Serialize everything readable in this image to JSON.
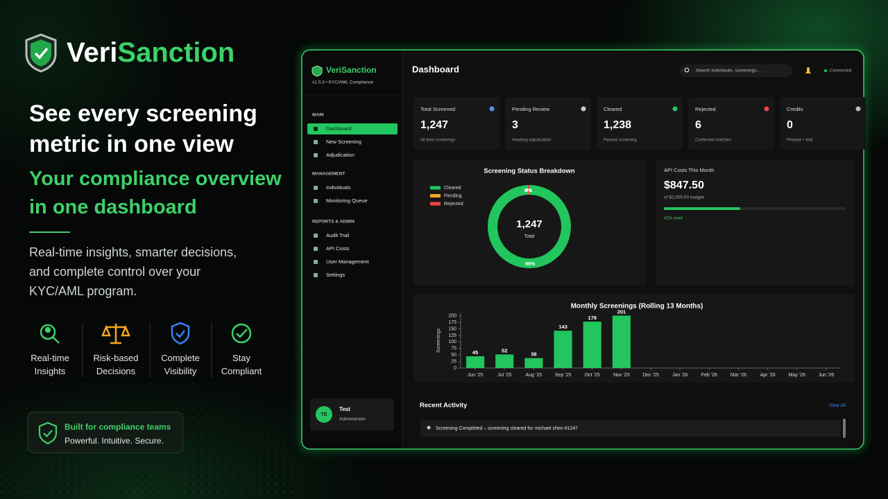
{
  "brand": {
    "first": "Veri",
    "second": "Sanction"
  },
  "headline": "See every screening metric in one view",
  "subheadline": "Your compliance overview in one dashboard",
  "description": "Real-time insights, smarter decisions, and complete control over your KYC/AML program.",
  "features": [
    "Real-time Insights",
    "Risk-based Decisions",
    "Complete Visibility",
    "Stay Compliant"
  ],
  "badge": {
    "title": "Built for compliance teams",
    "text": "Powerful. Intuitive. Secure."
  },
  "app": {
    "brand": "VeriSanction",
    "version": "v1.0.3 • KYC/AML Compliance",
    "nav": [
      {
        "section": "MAIN",
        "items": [
          "Dashboard",
          "New Screening",
          "Adjudication"
        ]
      },
      {
        "section": "MANAGEMENT",
        "items": [
          "Individuals",
          "Monitoring Queue"
        ]
      },
      {
        "section": "REPORTS & ADMIN",
        "items": [
          "Audit Trail",
          "API Costs",
          "User Management",
          "Settings"
        ]
      }
    ],
    "user": {
      "initials": "TE",
      "name": "Test",
      "role": "Administrator"
    },
    "page_title": "Dashboard",
    "search_placeholder": "Search individuals, screenings...",
    "status": "Connected",
    "stats": [
      {
        "label": "Total Screened",
        "value": "1,247",
        "note": "All time screenings"
      },
      {
        "label": "Pending Review",
        "value": "3",
        "note": "Awaiting adjudication"
      },
      {
        "label": "Cleared",
        "value": "1,238",
        "note": "Passed screening"
      },
      {
        "label": "Rejected",
        "value": "6",
        "note": "Confirmed matches"
      },
      {
        "label": "Credits",
        "value": "0",
        "note": "Prepaid + trial"
      }
    ],
    "api_costs": {
      "title": "API Costs This Month",
      "amount": "$847.50",
      "budget": "of $2,000.00 budget",
      "used_pct": 42,
      "used_label": "42% used"
    },
    "recent": {
      "title": "Recent Activity",
      "link": "View All",
      "items": [
        "Screening Completed – screening cleared for michael chen #1247"
      ]
    }
  },
  "chart_data": [
    {
      "type": "pie",
      "title": "Screening Status Breakdown",
      "categories": [
        "Cleared",
        "Pending",
        "Rejected"
      ],
      "values": [
        99.3,
        0.2,
        0.5
      ],
      "value_labels": [
        "99%",
        "0%",
        "0%"
      ],
      "colors": [
        "#22c55e",
        "#f5a623",
        "#ef4444"
      ],
      "center_value": "1,247",
      "center_label": "Total"
    },
    {
      "type": "bar",
      "title": "Monthly Screenings (Rolling 13 Months)",
      "y_label": "Screenings",
      "categories": [
        "Jun '25",
        "Jul '25",
        "Aug '25",
        "Sep '25",
        "Oct '25",
        "Nov '25",
        "Dec '25",
        "Jan '26",
        "Feb '26",
        "Mar '26",
        "Apr '26",
        "May '26",
        "Jun '26"
      ],
      "values": [
        45,
        52,
        38,
        143,
        178,
        201,
        null,
        null,
        null,
        null,
        null,
        null,
        null
      ],
      "color": "#22c55e",
      "ylim": [
        0,
        210
      ],
      "yticks": [
        0,
        25,
        50,
        75,
        100,
        125,
        150,
        175,
        200
      ],
      "grid": false
    }
  ]
}
